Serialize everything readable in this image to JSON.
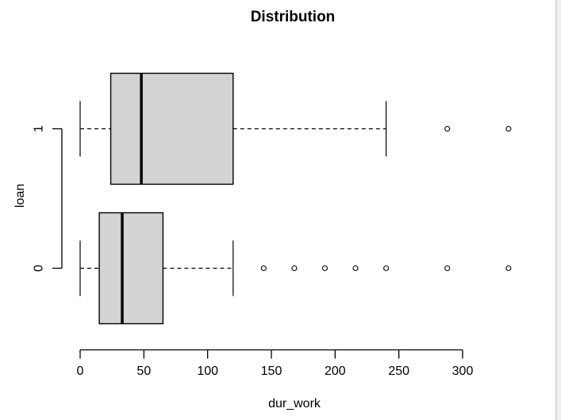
{
  "chart_data": {
    "type": "boxplot",
    "orientation": "horizontal",
    "title": "Distribution",
    "xlabel": "dur_work",
    "ylabel": "loan",
    "xlim": [
      0,
      300
    ],
    "x_ticks": [
      0,
      50,
      100,
      150,
      200,
      250,
      300
    ],
    "grid": false,
    "box_fill": "#d3d3d3",
    "line_color": "#000000",
    "outlier_fill": "#ffffff",
    "groups": [
      {
        "label": "0",
        "whisker_low": 0,
        "q1": 15,
        "median": 33,
        "q3": 65,
        "whisker_high": 120,
        "outliers": [
          144,
          168,
          192,
          216,
          240,
          288,
          336
        ]
      },
      {
        "label": "1",
        "whisker_low": 0,
        "q1": 24,
        "median": 48,
        "q3": 120,
        "whisker_high": 240,
        "outliers": [
          288,
          336
        ]
      }
    ]
  }
}
